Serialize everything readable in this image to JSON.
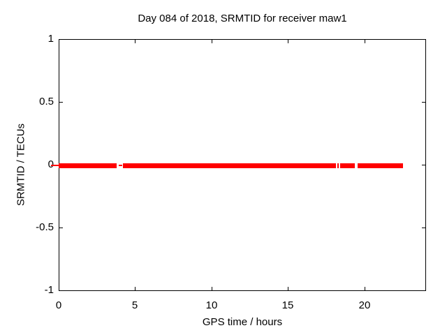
{
  "window": {
    "background_color": "#ffffff",
    "text_color": "#000000"
  },
  "chart_data": {
    "type": "line",
    "title": "Day 084 of 2018, SRMTID for receiver maw1",
    "xlabel": "GPS time / hours",
    "ylabel": "SRMTID / TECUs",
    "xlim": [
      0,
      24
    ],
    "ylim": [
      -1,
      1
    ],
    "xticks": {
      "values": [
        0,
        5,
        10,
        15,
        20
      ],
      "labels": [
        "0",
        "5",
        "10",
        "15",
        "20"
      ]
    },
    "yticks": {
      "values": [
        1,
        0.5,
        0,
        -0.5,
        -1
      ],
      "labels": [
        "1",
        "0.5",
        "0",
        "-0.5",
        "-1"
      ]
    },
    "grid": {
      "show": true,
      "color": "#a8a8a8",
      "style": "dotted"
    },
    "border_color": "#000000",
    "legend": {
      "show": false
    },
    "series": [
      {
        "name": "SRMTID",
        "color": "#ff0000",
        "y_value": 0,
        "segments_hours": [
          [
            0.0,
            3.8
          ],
          [
            4.2,
            18.15
          ],
          [
            18.24,
            18.33
          ],
          [
            18.42,
            19.38
          ],
          [
            19.57,
            22.54
          ]
        ],
        "thin_segments_hours": [
          [
            -0.5,
            0.0
          ],
          [
            3.93,
            4.16
          ]
        ]
      }
    ]
  }
}
